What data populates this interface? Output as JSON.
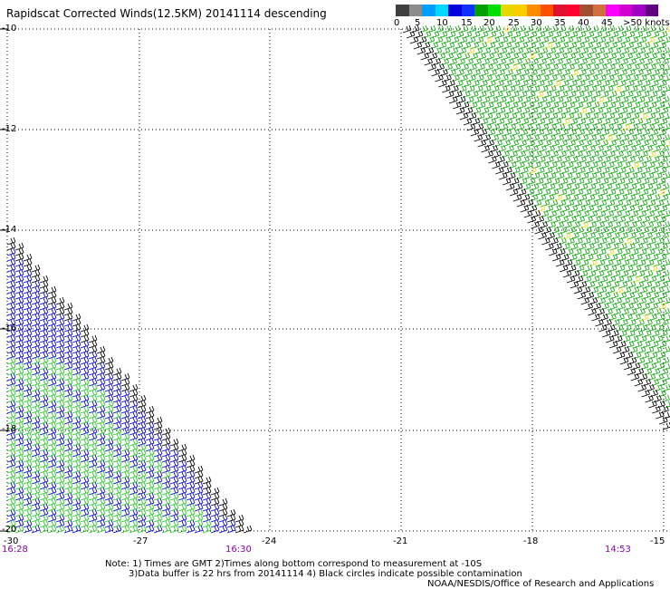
{
  "title": "Rapidscat Corrected Winds(12.5KM) 20141114 descending",
  "legend": {
    "colors": [
      "#404040",
      "#8c8c8c",
      "#00a0ff",
      "#00d8ff",
      "#0000e0",
      "#1030ff",
      "#00a000",
      "#00e000",
      "#e8d800",
      "#ffcc00",
      "#ff8c00",
      "#ff5000",
      "#e01030",
      "#ff0030",
      "#a05030",
      "#d07040",
      "#ff00ff",
      "#d000d0",
      "#a000c0",
      "#600080"
    ],
    "labels": [
      "0",
      "5",
      "10",
      "15",
      "20",
      "25",
      "30",
      "35",
      "40",
      "45",
      ">50 knots"
    ]
  },
  "axes": {
    "lon_labels": [
      "-30",
      "-27",
      "-24",
      "-21",
      "-18",
      "-15"
    ],
    "lat_labels": [
      "-10",
      "-12",
      "-14",
      "-16",
      "-18",
      "-20"
    ]
  },
  "times": [
    "16:28",
    "16:30",
    "14:53"
  ],
  "notes": {
    "line1": "Note: 1) Times are GMT 2)Times along bottom correspond to measurement at -10S",
    "line2": "3)Data buffer is 22 hrs from 20141114 4) Black circles indicate possible contamination",
    "line3": "NOAA/NESDIS/Office of Research and Applications"
  }
}
